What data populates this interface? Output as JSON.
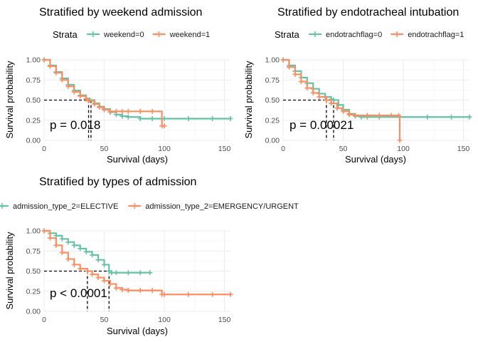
{
  "chart_data": [
    {
      "type": "line",
      "subtype": "kaplan-meier",
      "title": "Stratified by weekend admission",
      "legend_title": "Strata",
      "legend_position": "top",
      "xlabel": "Survival (days)",
      "ylabel": "Survival probability",
      "xlim": [
        0,
        155
      ],
      "ylim": [
        0,
        1
      ],
      "x_ticks": [
        "0",
        "50",
        "100",
        "150"
      ],
      "y_ticks": [
        "0.00",
        "0.25",
        "0.50",
        "0.75",
        "1.00"
      ],
      "pvalue": "p = 0.018",
      "median_survival": [
        37,
        39
      ],
      "series": [
        {
          "name": "weekend=0",
          "color": "#66c2a5",
          "x": [
            0,
            5,
            10,
            15,
            20,
            25,
            30,
            35,
            38,
            42,
            46,
            50,
            55,
            60,
            65,
            70,
            80,
            90,
            100,
            120,
            140,
            155
          ],
          "y": [
            1.0,
            0.93,
            0.85,
            0.77,
            0.69,
            0.62,
            0.56,
            0.52,
            0.5,
            0.46,
            0.42,
            0.39,
            0.35,
            0.32,
            0.3,
            0.29,
            0.27,
            0.27,
            0.27,
            0.27,
            0.27,
            0.27
          ]
        },
        {
          "name": "weekend=1",
          "color": "#fc8d62",
          "x": [
            0,
            5,
            10,
            15,
            20,
            25,
            30,
            35,
            37,
            42,
            46,
            50,
            55,
            60,
            65,
            70,
            80,
            90,
            98,
            100
          ],
          "y": [
            1.0,
            0.92,
            0.84,
            0.75,
            0.67,
            0.6,
            0.55,
            0.51,
            0.49,
            0.45,
            0.41,
            0.38,
            0.36,
            0.36,
            0.36,
            0.36,
            0.36,
            0.36,
            0.18,
            0.18
          ]
        }
      ]
    },
    {
      "type": "line",
      "subtype": "kaplan-meier",
      "title": "Stratified by endotracheal intubation",
      "legend_title": "Strata",
      "legend_position": "top",
      "xlabel": "Survival (days)",
      "ylabel": "Survival probability",
      "xlim": [
        0,
        155
      ],
      "ylim": [
        0,
        1
      ],
      "x_ticks": [
        "0",
        "50",
        "100",
        "150"
      ],
      "y_ticks": [
        "0.00",
        "0.25",
        "0.50",
        "0.75",
        "1.00"
      ],
      "pvalue": "p = 0.00021",
      "median_survival": [
        36,
        42
      ],
      "series": [
        {
          "name": "endotrachflag=0",
          "color": "#66c2a5",
          "x": [
            0,
            5,
            10,
            15,
            20,
            25,
            30,
            35,
            40,
            42,
            46,
            50,
            55,
            60,
            65,
            70,
            80,
            97,
            120,
            140,
            155
          ],
          "y": [
            1.0,
            0.93,
            0.86,
            0.78,
            0.71,
            0.64,
            0.58,
            0.54,
            0.51,
            0.5,
            0.44,
            0.38,
            0.33,
            0.3,
            0.29,
            0.29,
            0.29,
            0.29,
            0.29,
            0.29,
            0.29
          ]
        },
        {
          "name": "endotrachflag=1",
          "color": "#fc8d62",
          "x": [
            0,
            5,
            10,
            15,
            20,
            25,
            30,
            36,
            40,
            45,
            50,
            55,
            60,
            70,
            80,
            90,
            96,
            97
          ],
          "y": [
            1.0,
            0.91,
            0.82,
            0.73,
            0.65,
            0.59,
            0.54,
            0.5,
            0.46,
            0.4,
            0.36,
            0.32,
            0.31,
            0.31,
            0.31,
            0.31,
            0.31,
            0.0
          ]
        }
      ]
    },
    {
      "type": "line",
      "subtype": "kaplan-meier",
      "title": "Stratified by types of admission",
      "legend_title": "",
      "legend_position": "top",
      "xlabel": "Survival (days)",
      "ylabel": "Survival probability",
      "xlim": [
        0,
        155
      ],
      "ylim": [
        0,
        1
      ],
      "x_ticks": [
        "0",
        "50",
        "100",
        "150"
      ],
      "y_ticks": [
        "0.00",
        "0.25",
        "0.50",
        "0.75",
        "1.00"
      ],
      "pvalue": "p < 0.0001",
      "median_survival": [
        36,
        54
      ],
      "series": [
        {
          "name": "admission_type_2=ELECTIVE",
          "color": "#66c2a5",
          "x": [
            0,
            5,
            10,
            15,
            20,
            25,
            30,
            35,
            40,
            45,
            50,
            54,
            56,
            60,
            70,
            80,
            88
          ],
          "y": [
            1.0,
            0.97,
            0.94,
            0.9,
            0.86,
            0.82,
            0.78,
            0.74,
            0.7,
            0.64,
            0.58,
            0.5,
            0.48,
            0.48,
            0.48,
            0.48,
            0.48
          ]
        },
        {
          "name": "admission_type_2=EMERGENCY/URGENT",
          "color": "#fc8d62",
          "x": [
            0,
            5,
            10,
            15,
            20,
            25,
            30,
            36,
            40,
            45,
            50,
            55,
            60,
            65,
            70,
            80,
            90,
            98,
            100,
            120,
            140,
            155
          ],
          "y": [
            1.0,
            0.91,
            0.82,
            0.73,
            0.65,
            0.58,
            0.53,
            0.5,
            0.46,
            0.42,
            0.38,
            0.34,
            0.29,
            0.27,
            0.26,
            0.26,
            0.26,
            0.21,
            0.21,
            0.21,
            0.21,
            0.21
          ]
        }
      ]
    }
  ]
}
